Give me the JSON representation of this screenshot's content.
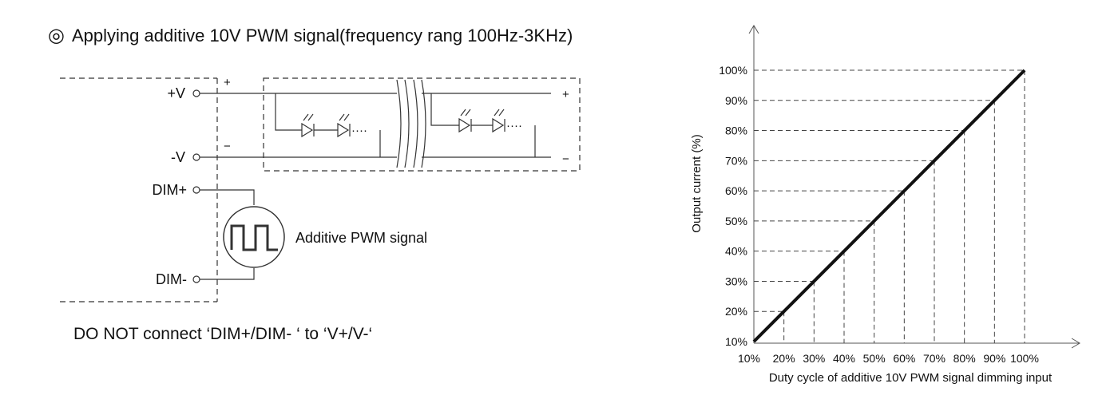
{
  "heading": {
    "symbol": "◎",
    "text": "Applying additive 10V PWM signal(frequency rang 100Hz-3KHz)"
  },
  "circuit": {
    "terminals": {
      "plus_v": "+V",
      "minus_v": "-V",
      "dim_plus": "DIM+",
      "dim_minus": "DIM-"
    },
    "polarity_driver_plus": "+",
    "polarity_driver_minus": "−",
    "polarity_load_plus": "+",
    "polarity_load_minus": "−",
    "pwm_label": "Additive PWM signal",
    "dots_left": "····",
    "dots_right": "····"
  },
  "warning": "DO NOT connect ‘DIM+/DIM- ‘ to ‘V+/V-‘",
  "chart_data": {
    "type": "line",
    "xlabel": "Duty cycle of additive 10V PWM signal dimming input",
    "ylabel": "Output current (%)",
    "x_ticks": [
      "10%",
      "20%",
      "30%",
      "40%",
      "50%",
      "60%",
      "70%",
      "80%",
      "90%",
      "100%"
    ],
    "y_ticks": [
      "10%",
      "20%",
      "30%",
      "40%",
      "50%",
      "60%",
      "70%",
      "80%",
      "90%",
      "100%"
    ],
    "x": [
      10,
      20,
      30,
      40,
      50,
      60,
      70,
      80,
      90,
      100
    ],
    "y": [
      10,
      20,
      30,
      40,
      50,
      60,
      70,
      80,
      90,
      100
    ],
    "xlim": [
      10,
      100
    ],
    "ylim": [
      10,
      100
    ],
    "grid": "dashed guide lines to each point"
  }
}
